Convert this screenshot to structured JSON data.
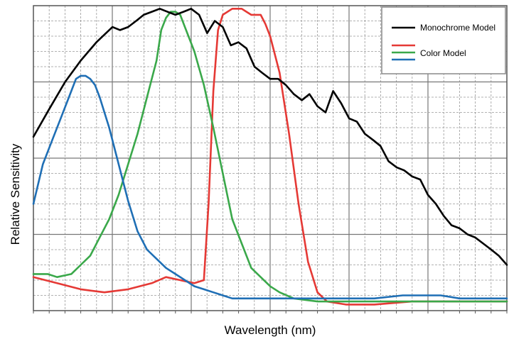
{
  "chart_data": {
    "type": "line",
    "title": "",
    "xlabel": "Wavelength (nm)",
    "ylabel": "Relative Sensitivity",
    "xlim": [
      0,
      100
    ],
    "ylim": [
      0,
      100
    ],
    "grid": true,
    "axis_ticks_labeled": false,
    "legend_position": "top-right",
    "series": [
      {
        "name": "Monochrome Model",
        "color": "#000000",
        "points": [
          [
            0,
            57
          ],
          [
            3.3,
            66
          ],
          [
            6.7,
            75
          ],
          [
            10,
            82
          ],
          [
            13.3,
            88
          ],
          [
            16.7,
            93
          ],
          [
            18.3,
            92
          ],
          [
            20,
            93
          ],
          [
            21.7,
            95
          ],
          [
            23.3,
            97
          ],
          [
            25,
            98
          ],
          [
            26.7,
            99
          ],
          [
            28.3,
            98
          ],
          [
            30,
            97
          ],
          [
            31.7,
            98
          ],
          [
            33.3,
            99
          ],
          [
            35,
            97
          ],
          [
            36.7,
            91
          ],
          [
            38.3,
            95
          ],
          [
            40,
            93
          ],
          [
            41.7,
            87
          ],
          [
            43.3,
            88
          ],
          [
            45,
            86
          ],
          [
            46.7,
            80
          ],
          [
            48.3,
            78
          ],
          [
            50,
            76
          ],
          [
            51.7,
            76
          ],
          [
            53.3,
            74
          ],
          [
            55,
            71
          ],
          [
            56.7,
            69
          ],
          [
            58.3,
            71
          ],
          [
            60,
            67
          ],
          [
            61.7,
            65
          ],
          [
            63.3,
            72
          ],
          [
            65,
            68
          ],
          [
            66.7,
            63
          ],
          [
            68.3,
            62
          ],
          [
            70,
            58
          ],
          [
            71.7,
            56
          ],
          [
            73.3,
            54
          ],
          [
            75,
            49
          ],
          [
            76.7,
            47
          ],
          [
            78.3,
            46
          ],
          [
            80,
            44
          ],
          [
            81.7,
            43
          ],
          [
            83.3,
            38
          ],
          [
            85,
            35
          ],
          [
            86.7,
            31
          ],
          [
            88.3,
            28
          ],
          [
            90,
            27
          ],
          [
            91.7,
            25
          ],
          [
            93.3,
            24
          ],
          [
            95,
            22
          ],
          [
            96.7,
            20
          ],
          [
            98.3,
            18
          ],
          [
            100,
            15
          ]
        ]
      },
      {
        "name": "Color Model",
        "color": "#e53935",
        "points": [
          [
            0,
            11
          ],
          [
            5,
            9
          ],
          [
            10,
            7
          ],
          [
            15,
            6
          ],
          [
            20,
            7
          ],
          [
            25,
            9
          ],
          [
            28,
            11
          ],
          [
            31,
            10
          ],
          [
            34,
            9
          ],
          [
            36,
            10
          ],
          [
            37,
            35
          ],
          [
            38,
            72
          ],
          [
            39,
            92
          ],
          [
            40,
            97
          ],
          [
            42,
            99
          ],
          [
            44,
            99
          ],
          [
            45,
            98
          ],
          [
            46,
            97
          ],
          [
            48,
            97
          ],
          [
            49,
            94
          ],
          [
            50,
            90
          ],
          [
            52,
            78
          ],
          [
            54,
            58
          ],
          [
            56,
            35
          ],
          [
            58,
            16
          ],
          [
            60,
            6
          ],
          [
            62,
            3
          ],
          [
            66,
            2
          ],
          [
            72,
            2
          ],
          [
            80,
            3
          ],
          [
            88,
            3
          ],
          [
            100,
            3
          ]
        ]
      },
      {
        "color": "#3aa84a",
        "points": [
          [
            0,
            12
          ],
          [
            3,
            12
          ],
          [
            5,
            11
          ],
          [
            8,
            12
          ],
          [
            10,
            15
          ],
          [
            12,
            18
          ],
          [
            14,
            24
          ],
          [
            16,
            30
          ],
          [
            18,
            38
          ],
          [
            20,
            48
          ],
          [
            22,
            58
          ],
          [
            24,
            70
          ],
          [
            26,
            82
          ],
          [
            27,
            92
          ],
          [
            28,
            96
          ],
          [
            29,
            98
          ],
          [
            30,
            98
          ],
          [
            31,
            97
          ],
          [
            32,
            93
          ],
          [
            34,
            85
          ],
          [
            36,
            74
          ],
          [
            38,
            60
          ],
          [
            40,
            45
          ],
          [
            42,
            30
          ],
          [
            44,
            22
          ],
          [
            46,
            14
          ],
          [
            48,
            11
          ],
          [
            50,
            8
          ],
          [
            52,
            6
          ],
          [
            55,
            4
          ],
          [
            60,
            3
          ],
          [
            66,
            3
          ],
          [
            72,
            3
          ],
          [
            80,
            3
          ],
          [
            88,
            3
          ],
          [
            100,
            3
          ]
        ]
      },
      {
        "color": "#1f6fb5",
        "points": [
          [
            0,
            35
          ],
          [
            2,
            48
          ],
          [
            4,
            56
          ],
          [
            6,
            64
          ],
          [
            8,
            72
          ],
          [
            9,
            76
          ],
          [
            10,
            77
          ],
          [
            11,
            77
          ],
          [
            12,
            76
          ],
          [
            13,
            74
          ],
          [
            14,
            70
          ],
          [
            16,
            60
          ],
          [
            18,
            48
          ],
          [
            20,
            36
          ],
          [
            22,
            26
          ],
          [
            24,
            20
          ],
          [
            26,
            17
          ],
          [
            28,
            14
          ],
          [
            30,
            12
          ],
          [
            32,
            10
          ],
          [
            34,
            8
          ],
          [
            36,
            7
          ],
          [
            38,
            6
          ],
          [
            40,
            5
          ],
          [
            42,
            4
          ],
          [
            46,
            4
          ],
          [
            50,
            4
          ],
          [
            55,
            4
          ],
          [
            60,
            4
          ],
          [
            66,
            4
          ],
          [
            72,
            4
          ],
          [
            78,
            5
          ],
          [
            82,
            5
          ],
          [
            86,
            5
          ],
          [
            90,
            4
          ],
          [
            95,
            4
          ],
          [
            100,
            4
          ]
        ]
      }
    ]
  }
}
